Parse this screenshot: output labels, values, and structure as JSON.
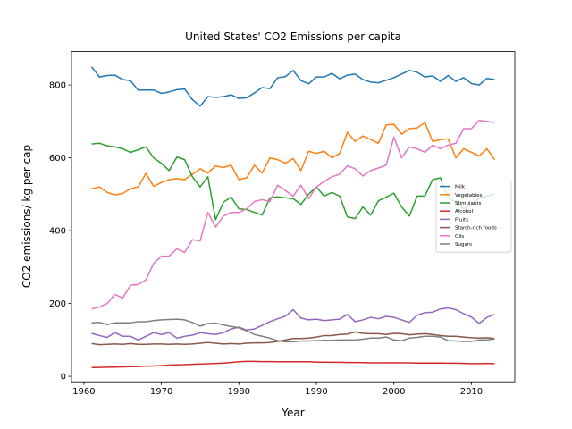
{
  "chart_data": {
    "type": "line",
    "title": "United States' CO2 Emissions per capita",
    "x_label": "Year",
    "y_label": "CO2 emissions/ kg per cap",
    "x": [
      1961,
      1962,
      1963,
      1964,
      1965,
      1966,
      1967,
      1968,
      1969,
      1970,
      1971,
      1972,
      1973,
      1974,
      1975,
      1976,
      1977,
      1978,
      1979,
      1980,
      1981,
      1982,
      1983,
      1984,
      1985,
      1986,
      1987,
      1988,
      1989,
      1990,
      1991,
      1992,
      1993,
      1994,
      1995,
      1996,
      1997,
      1998,
      1999,
      2000,
      2001,
      2002,
      2003,
      2004,
      2005,
      2006,
      2007,
      2008,
      2009,
      2010,
      2011,
      2012,
      2013
    ],
    "xlim": [
      1958.4,
      2015.6
    ],
    "xticks": [
      1960,
      1970,
      1980,
      1990,
      2000,
      2010
    ],
    "ylim": [
      -15,
      892
    ],
    "yticks": [
      0,
      200,
      400,
      600,
      800
    ],
    "legend_loc": "center right",
    "series": [
      {
        "name": "Milk",
        "color": "#1f77b4",
        "values": [
          850,
          822,
          826,
          827,
          815,
          812,
          786,
          786,
          786,
          777,
          781,
          787,
          789,
          760,
          742,
          768,
          766,
          768,
          773,
          763,
          765,
          778,
          793,
          790,
          820,
          823,
          840,
          812,
          803,
          822,
          822,
          832,
          817,
          827,
          830,
          815,
          808,
          806,
          813,
          820,
          830,
          840,
          835,
          822,
          825,
          810,
          826,
          810,
          820,
          804,
          800,
          818,
          815
        ]
      },
      {
        "name": "Vegetables",
        "color": "#ff7f0e",
        "values": [
          515,
          520,
          505,
          498,
          502,
          515,
          520,
          557,
          522,
          532,
          540,
          543,
          540,
          555,
          570,
          558,
          578,
          573,
          580,
          540,
          545,
          580,
          558,
          600,
          595,
          585,
          598,
          565,
          618,
          612,
          618,
          600,
          612,
          670,
          645,
          660,
          650,
          640,
          690,
          692,
          665,
          680,
          682,
          697,
          645,
          650,
          652,
          600,
          625,
          615,
          605,
          625,
          595
        ]
      },
      {
        "name": "Stimulants",
        "color": "#2ca02c",
        "values": [
          638,
          640,
          633,
          630,
          625,
          615,
          622,
          630,
          600,
          585,
          565,
          602,
          595,
          548,
          520,
          548,
          430,
          478,
          492,
          460,
          458,
          450,
          443,
          490,
          493,
          490,
          488,
          472,
          500,
          520,
          495,
          505,
          495,
          438,
          433,
          465,
          443,
          482,
          492,
          503,
          465,
          440,
          495,
          495,
          540,
          545,
          490,
          478,
          460,
          470,
          490,
          495,
          500
        ]
      },
      {
        "name": "Alcohol",
        "color": "#d62728",
        "values": [
          24,
          24.5,
          25,
          25.5,
          26,
          26.5,
          27,
          28,
          28.5,
          29.5,
          31,
          31.5,
          32,
          33,
          34,
          34.5,
          35.5,
          36.5,
          38,
          40,
          41,
          41,
          40.5,
          40.5,
          40,
          40,
          40,
          40,
          40,
          39,
          39,
          38.5,
          38.5,
          38,
          38,
          37.5,
          37,
          37,
          37,
          37,
          37,
          37,
          36.5,
          36.5,
          36.5,
          36.5,
          36,
          36,
          35.5,
          35,
          35,
          35.5,
          35
        ]
      },
      {
        "name": "Fruits",
        "color": "#9467bd",
        "values": [
          118,
          112,
          107,
          120,
          110,
          110,
          100,
          110,
          120,
          115,
          120,
          105,
          110,
          113,
          120,
          117,
          115,
          120,
          130,
          135,
          127,
          130,
          140,
          150,
          158,
          165,
          183,
          160,
          155,
          157,
          153,
          155,
          157,
          170,
          150,
          155,
          162,
          158,
          165,
          162,
          155,
          148,
          168,
          175,
          176,
          185,
          188,
          183,
          172,
          163,
          145,
          162,
          170
        ]
      },
      {
        "name": "Starch-rich foods",
        "color": "#8c564b",
        "values": [
          90,
          87,
          88,
          89,
          88,
          90,
          88,
          88,
          89,
          89,
          88,
          89,
          88,
          89,
          91,
          93,
          91,
          89,
          90,
          89,
          91,
          92,
          92,
          93,
          96,
          100,
          104,
          104,
          105,
          108,
          112,
          112,
          115,
          116,
          122,
          118,
          117,
          117,
          115,
          118,
          117,
          114,
          116,
          117,
          115,
          112,
          110,
          110,
          108,
          106,
          105,
          106,
          104
        ]
      },
      {
        "name": "Oils",
        "color": "#e377c2",
        "values": [
          185,
          190,
          200,
          225,
          215,
          250,
          252,
          265,
          310,
          330,
          330,
          350,
          340,
          375,
          372,
          450,
          410,
          440,
          450,
          450,
          460,
          480,
          485,
          480,
          525,
          510,
          495,
          525,
          488,
          520,
          535,
          548,
          555,
          578,
          570,
          550,
          565,
          572,
          580,
          657,
          600,
          630,
          625,
          615,
          635,
          625,
          635,
          640,
          680,
          680,
          703,
          700,
          697
        ]
      },
      {
        "name": "Sugars",
        "color": "#7f7f7f",
        "values": [
          147,
          148,
          142,
          147,
          147,
          147,
          150,
          150,
          153,
          155,
          156,
          157,
          155,
          148,
          138,
          145,
          146,
          141,
          137,
          133,
          125,
          115,
          110,
          105,
          98,
          95,
          95,
          97,
          97,
          98,
          99,
          99,
          100,
          100,
          100,
          102,
          105,
          105,
          108,
          100,
          98,
          105,
          107,
          110,
          110,
          108,
          98,
          97,
          96,
          96,
          100,
          100,
          103
        ]
      }
    ]
  }
}
